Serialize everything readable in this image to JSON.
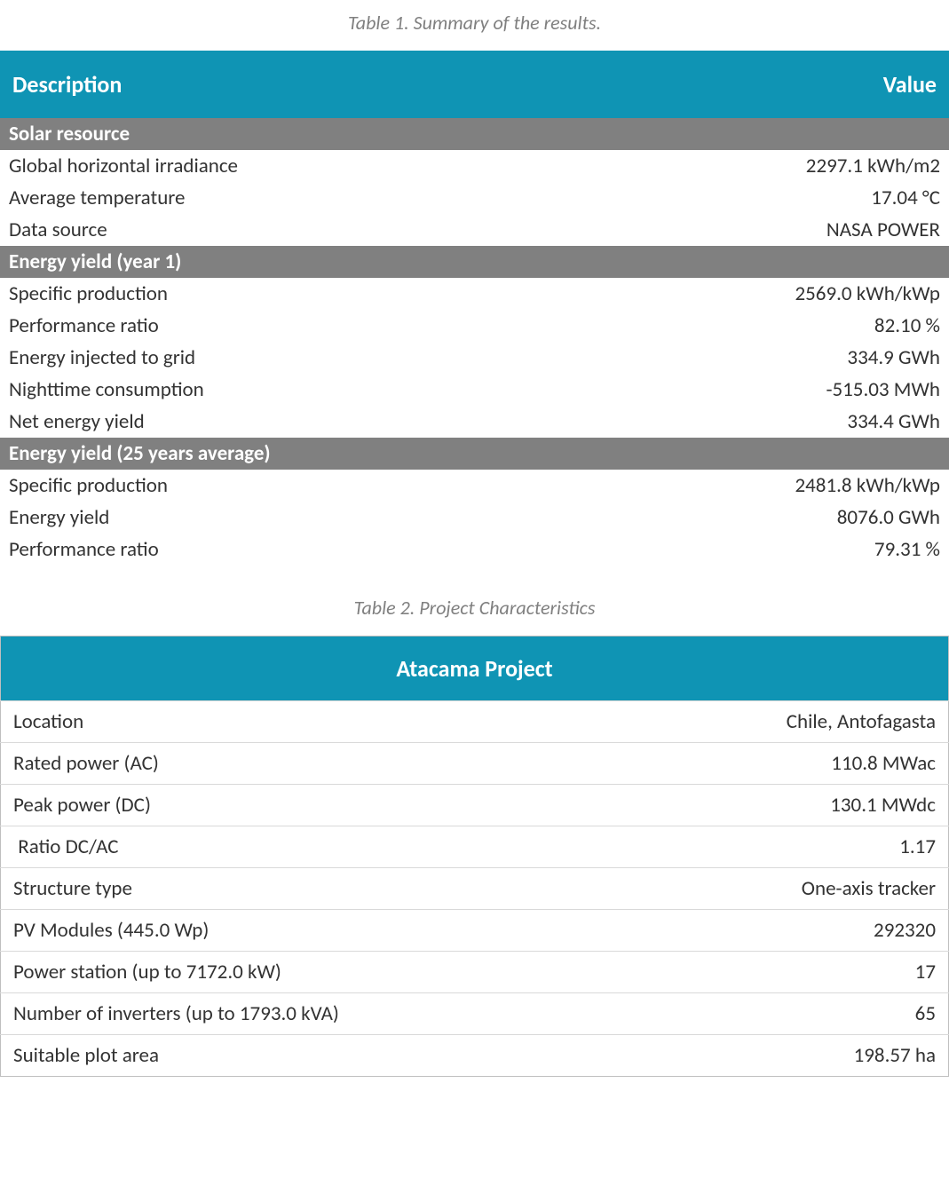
{
  "colors": {
    "header_bg": "#0f94b4",
    "header_fg": "#ffffff",
    "section_bg": "#808080",
    "section_fg": "#ffffff",
    "caption_fg": "#808080",
    "text_fg": "#333333",
    "border": "#bfbfbf",
    "row_border": "#d9d9d9",
    "page_bg": "#ffffff"
  },
  "typography": {
    "base_font": "Calibri",
    "caption_size_pt": 16,
    "header_size_pt": 19,
    "body_size_pt": 17
  },
  "table1": {
    "caption": "Table 1. Summary of the results.",
    "col_left": "Description",
    "col_right": "Value",
    "sections": [
      {
        "title": "Solar resource",
        "rows": [
          {
            "label": "Global horizontal irradiance",
            "value": "2297.1 kWh/m2"
          },
          {
            "label": "Average temperature",
            "value": "17.04 °C"
          },
          {
            "label": "Data source",
            "value": "NASA POWER"
          }
        ]
      },
      {
        "title": "Energy yield (year 1)",
        "rows": [
          {
            "label": "Specific production",
            "value": "2569.0 kWh/kWp"
          },
          {
            "label": "Performance ratio",
            "value": "82.10 %"
          },
          {
            "label": "Energy injected to grid",
            "value": "334.9 GWh"
          },
          {
            "label": "Nighttime consumption",
            "value": "-515.03 MWh"
          },
          {
            "label": "Net energy yield",
            "value": "334.4 GWh"
          }
        ]
      },
      {
        "title": "Energy yield (25 years average)",
        "rows": [
          {
            "label": "Specific production",
            "value": "2481.8 kWh/kWp"
          },
          {
            "label": "Energy yield",
            "value": "8076.0 GWh"
          },
          {
            "label": "Performance ratio",
            "value": "79.31 %"
          }
        ]
      }
    ]
  },
  "table2": {
    "caption": "Table 2. Project Characteristics",
    "title": "Atacama Project",
    "rows": [
      {
        "label": "Location",
        "value": "Chile, Antofagasta"
      },
      {
        "label": "Rated power (AC)",
        "value": "110.8 MWac"
      },
      {
        "label": "Peak power (DC)",
        "value": "130.1 MWdc"
      },
      {
        "label": " Ratio DC/AC",
        "value": "1.17"
      },
      {
        "label": "Structure type",
        "value": "One-axis tracker"
      },
      {
        "label": "PV Modules (445.0 Wp)",
        "value": "292320"
      },
      {
        "label": "Power station (up to 7172.0 kW)",
        "value": "17"
      },
      {
        "label": "Number of inverters (up to 1793.0 kVA)",
        "value": "65"
      },
      {
        "label": "Suitable plot area",
        "value": "198.57 ha"
      }
    ]
  }
}
